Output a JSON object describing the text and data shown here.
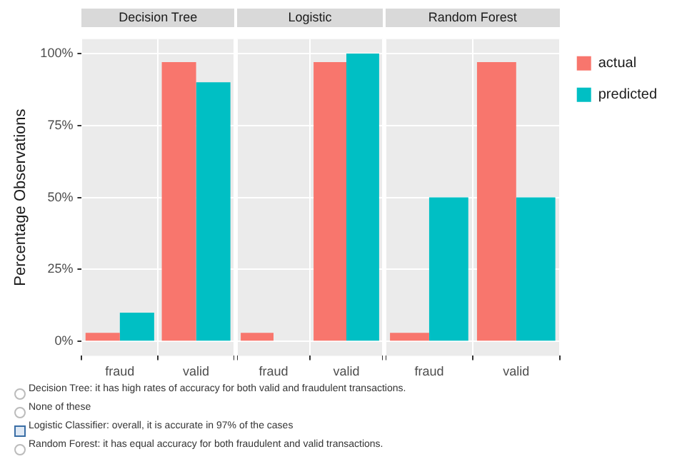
{
  "chart_data": [
    {
      "type": "bar",
      "title": "Decision Tree",
      "ylabel": "Percentage Observations",
      "categories": [
        "fraud",
        "valid"
      ],
      "series": [
        {
          "color": "#f8766d",
          "values": [
            3,
            97
          ]
        },
        {
          "color": "#00bfc4",
          "values": [
            10,
            90
          ]
        }
      ],
      "ylim": [
        -5,
        105
      ],
      "yticks": [
        {
          "value": 0,
          "label": "0%"
        },
        {
          "value": 25,
          "label": "25%"
        },
        {
          "value": 50,
          "label": "50%"
        },
        {
          "value": 75,
          "label": "75%"
        },
        {
          "value": 100,
          "label": "100%"
        }
      ],
      "grid": true,
      "annotations": [
        "Decision Tree: it has high rates of accuracy for both valid and fraudulent transactions.",
        "None of these",
        "Logistic Classifier: overall, it is accurate in 97% of the cases",
        "Random Forest: it has equal accuracy for both fraudulent and valid transactions."
      ]
    },
    {
      "type": "bar",
      "title": "Logistic",
      "categories": [
        "fraud",
        "valid"
      ],
      "series": [
        {
          "color": "#f8766d",
          "values": [
            3,
            97
          ]
        },
        {
          "color": "#00bfc4",
          "values": [
            0,
            100
          ]
        }
      ],
      "ylim": [
        -5,
        105
      ],
      "yticks": [
        {
          "value": 0,
          "label": null
        },
        {
          "value": 25,
          "label": null
        },
        {
          "value": 50,
          "label": null
        },
        {
          "value": 75,
          "label": null
        },
        {
          "value": 100,
          "label": null
        }
      ],
      "grid": true,
      "tick_labels": "x"
    },
    {
      "type": "bar",
      "title": "Random Forest",
      "categories": [
        "fraud",
        "valid"
      ],
      "series": [
        {
          "name": "actual",
          "color": "#f8766d",
          "values": [
            3,
            97
          ]
        },
        {
          "name": "predicted",
          "color": "#00bfc4",
          "values": [
            50,
            50
          ]
        }
      ],
      "ylim": [
        -5,
        105
      ],
      "yticks": [
        {
          "value": 0,
          "label": null
        },
        {
          "value": 25,
          "label": null
        },
        {
          "value": 50,
          "label": null
        },
        {
          "value": 75,
          "label": null
        },
        {
          "value": 100,
          "label": null
        }
      ],
      "grid": true,
      "tick_labels": "x",
      "legend": "right"
    }
  ]
}
